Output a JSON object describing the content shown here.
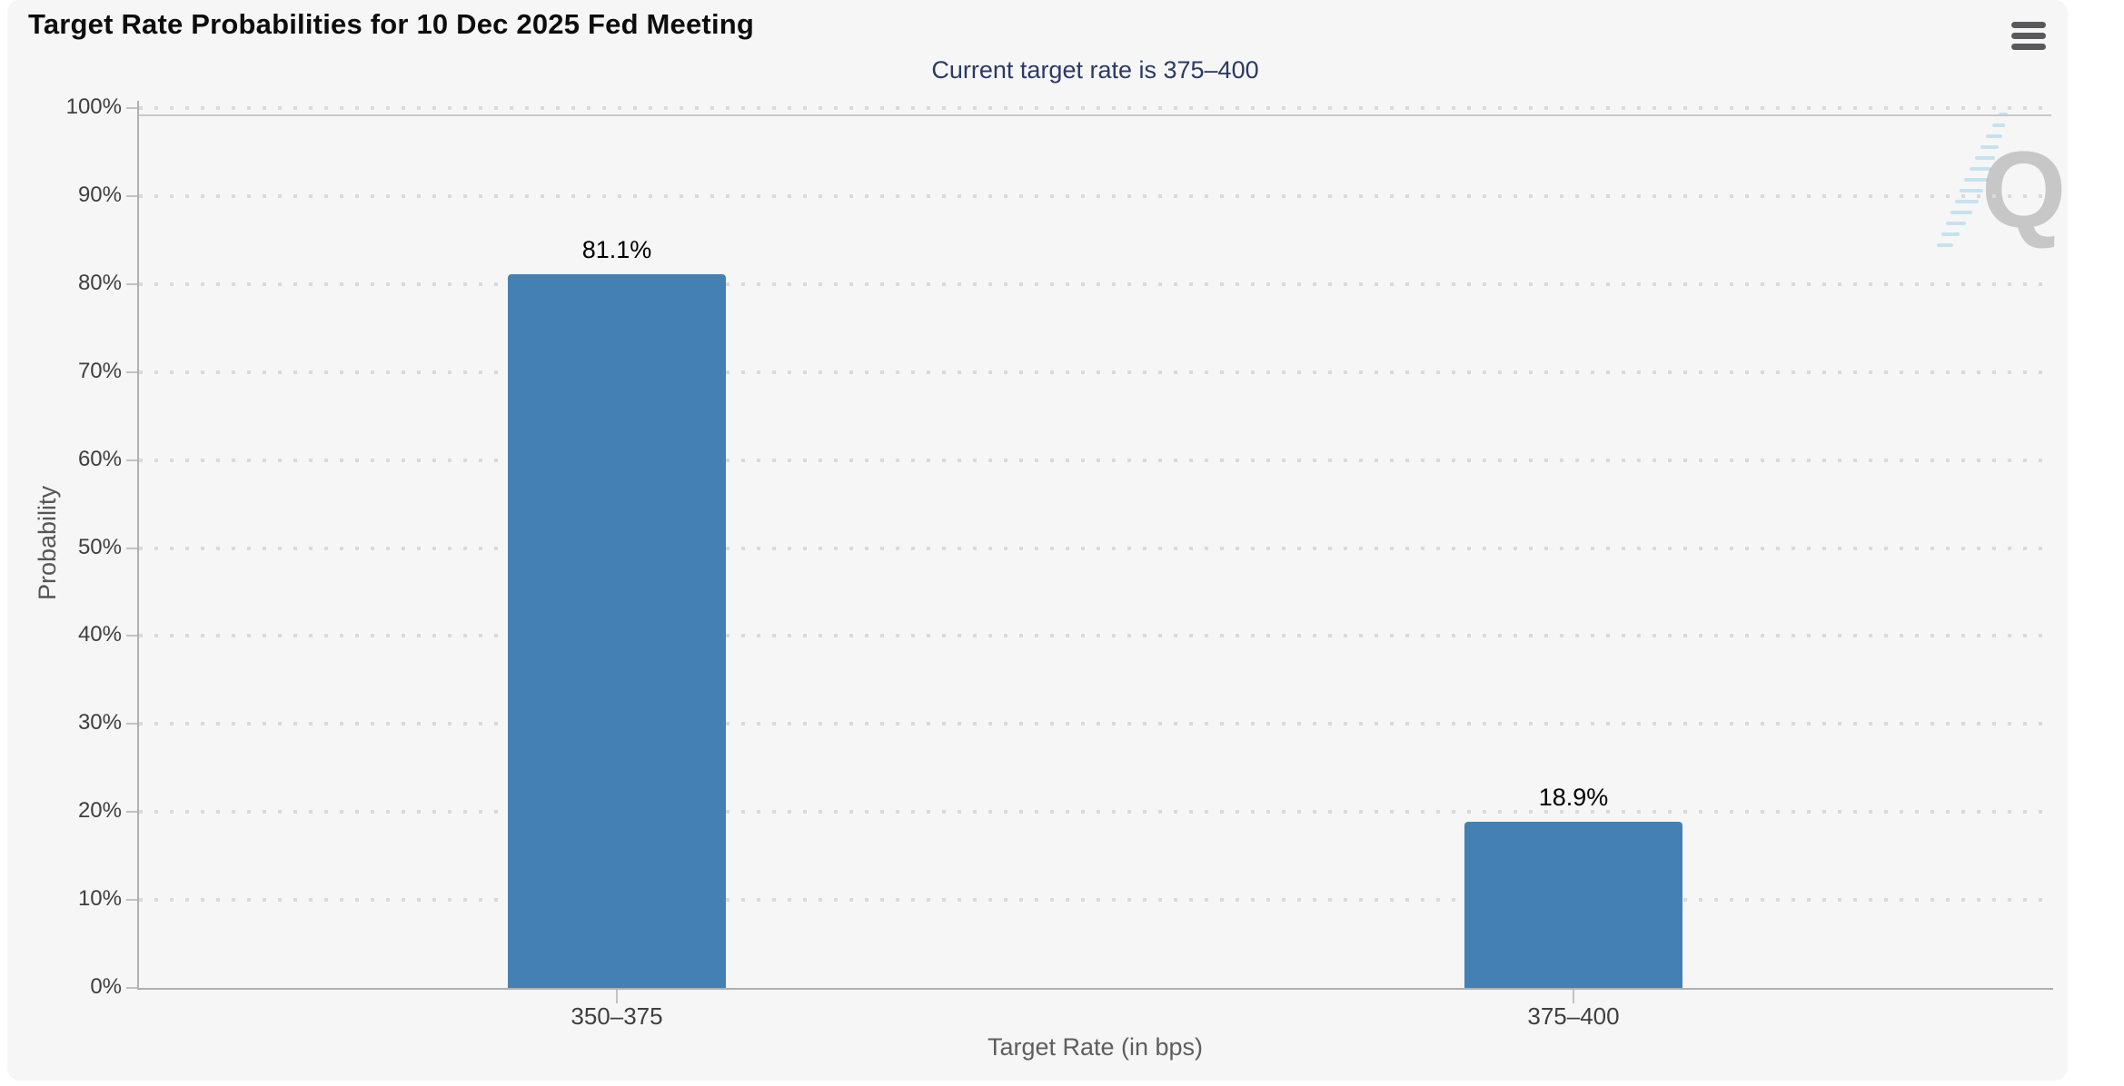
{
  "header": {
    "title": "Target Rate Probabilities for 10 Dec 2025 Fed Meeting",
    "menu_icon": "hamburger-menu"
  },
  "chart_data": {
    "type": "bar",
    "title": "Target Rate Probabilities for 10 Dec 2025 Fed Meeting",
    "subtitle": "Current target rate is 375–400",
    "categories": [
      "350–375",
      "375–400"
    ],
    "values": [
      81.1,
      18.9
    ],
    "value_labels": [
      "81.1%",
      "18.9%"
    ],
    "xlabel": "Target Rate (in bps)",
    "ylabel": "Probability",
    "ylim": [
      0,
      100
    ],
    "ytick_step": 10,
    "ytick_labels": [
      "0%",
      "10%",
      "20%",
      "30%",
      "40%",
      "50%",
      "60%",
      "70%",
      "80%",
      "90%",
      "100%"
    ],
    "grid": "dotted-horizontal",
    "legend": "none",
    "bar_color": "#4580B4",
    "watermark_letter": "Q"
  },
  "colors": {
    "panel_background": "#f6f6f6",
    "page_background": "#ffffff",
    "bar": "#4580B4",
    "title_text": "#0d0d0d",
    "subtitle_text": "#2b3a64",
    "tick_label_text": "#3f3f3f",
    "axis_title_text": "#5e5e5e",
    "axis_line": "#b0b0b0",
    "grid_dot": "#dadada",
    "menu_icon": "#59595b"
  }
}
